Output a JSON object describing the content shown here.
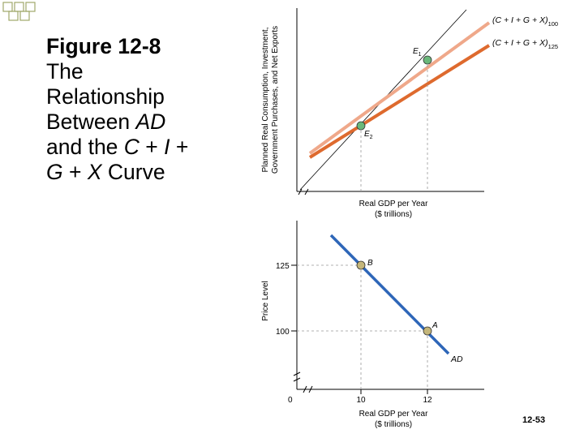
{
  "slide": {
    "title_bold": "Figure 12-8",
    "title_lines": [
      [
        {
          "t": "The",
          "i": false
        }
      ],
      [
        {
          "t": "Relationship",
          "i": false
        }
      ],
      [
        {
          "t": "Between ",
          "i": false
        },
        {
          "t": "AD",
          "i": true
        }
      ],
      [
        {
          "t": "and the ",
          "i": false
        },
        {
          "t": "C",
          "i": true
        },
        {
          "t": " + ",
          "i": false
        },
        {
          "t": "I",
          "i": true
        },
        {
          "t": " +",
          "i": false
        }
      ],
      [
        {
          "t": "G",
          "i": true
        },
        {
          "t": " + ",
          "i": false
        },
        {
          "t": "X",
          "i": true
        },
        {
          "t": " Curve",
          "i": false
        }
      ]
    ],
    "slide_number": "12-53"
  },
  "colors": {
    "curve_100": "#efa88a",
    "curve_125": "#de6a2e",
    "ad_curve": "#2e66b8",
    "point_green": "#6ab87a",
    "point_tan": "#c4b67a",
    "guide": "#999999",
    "bullet": "#a0a86a"
  },
  "chart_data": [
    {
      "type": "line",
      "ylabel_lines": [
        "Planned Real Consumption, Investment,",
        "Government Purchases, and Net Exports"
      ],
      "xlabel_lines": [
        "Real GDP per Year",
        "($ trillions)"
      ],
      "series": [
        {
          "name": "(C + I + G + X)100",
          "name_main": "(C + I + G + X)",
          "name_sub": "100"
        },
        {
          "name": "(C + I + G + X)125",
          "name_main": "(C + I + G + X)",
          "name_sub": "125"
        }
      ],
      "points": [
        {
          "label": "E",
          "sub": "1",
          "x": 12
        },
        {
          "label": "E",
          "sub": "2",
          "x": 10
        }
      ],
      "reference_line": "45-degree"
    },
    {
      "type": "line",
      "ylabel": "Price Level",
      "xlabel_lines": [
        "Real GDP per Year",
        "($ trillions)"
      ],
      "origin_label": "0",
      "x_ticks": [
        "10",
        "12"
      ],
      "y_ticks": [
        "125",
        "100"
      ],
      "series": [
        {
          "name": "AD",
          "points": [
            {
              "x": 10,
              "y": 125
            },
            {
              "x": 12,
              "y": 100
            }
          ]
        }
      ],
      "points": [
        {
          "label": "B",
          "x": 10,
          "y": 125
        },
        {
          "label": "A",
          "x": 12,
          "y": 100
        }
      ]
    }
  ]
}
